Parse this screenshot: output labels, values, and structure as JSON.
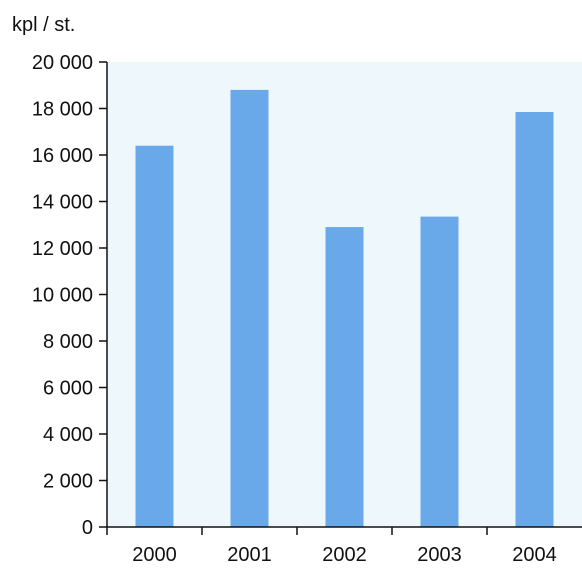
{
  "chart_data": {
    "type": "bar",
    "unit_label": "kpl / st.",
    "title": "",
    "xlabel": "",
    "ylabel": "",
    "categories": [
      "2000",
      "2001",
      "2002",
      "2003",
      "2004"
    ],
    "values": [
      16400,
      18800,
      12900,
      13350,
      17850
    ],
    "ylim": [
      0,
      20000
    ],
    "yticks": [
      0,
      2000,
      4000,
      6000,
      8000,
      10000,
      12000,
      14000,
      16000,
      18000,
      20000
    ],
    "ytick_labels": [
      "0",
      "2 000",
      "4 000",
      "6 000",
      "8 000",
      "10 000",
      "12 000",
      "14 000",
      "16 000",
      "18 000",
      "20 000"
    ],
    "grid": false,
    "legend": "none",
    "colors": {
      "bar": "#6aa9e9",
      "plot_background": "#eef7fc",
      "axis": "#111111"
    }
  }
}
